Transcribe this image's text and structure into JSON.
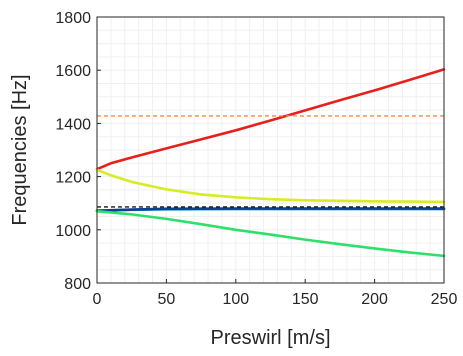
{
  "chart_data": {
    "type": "line",
    "title": "",
    "xlabel": "Preswirl [m/s]",
    "ylabel": "Frequencies [Hz]",
    "xlim": [
      0,
      250
    ],
    "ylim": [
      800,
      1800
    ],
    "xticks": [
      0,
      50,
      100,
      150,
      200,
      250
    ],
    "yticks": [
      800,
      1000,
      1200,
      1400,
      1600,
      1800
    ],
    "grid": true,
    "legend": "none",
    "series": [
      {
        "color": "#e8201c",
        "style": "solid",
        "x": [
          0,
          10,
          25,
          50,
          75,
          100,
          125,
          150,
          175,
          200,
          225,
          250
        ],
        "y": [
          1228,
          1250,
          1272,
          1306,
          1340,
          1374,
          1411,
          1449,
          1487,
          1524,
          1563,
          1603
        ]
      },
      {
        "color": "#d8ec26",
        "style": "solid",
        "x": [
          0,
          10,
          25,
          50,
          75,
          100,
          125,
          150,
          175,
          200,
          225,
          250
        ],
        "y": [
          1226,
          1205,
          1180,
          1152,
          1133,
          1122,
          1115,
          1111,
          1109,
          1107,
          1106,
          1105
        ]
      },
      {
        "color": "#1f9bd8",
        "style": "solid",
        "x": [
          0,
          25,
          50,
          100,
          150,
          200,
          250
        ],
        "y": [
          1072,
          1075,
          1077,
          1078,
          1078,
          1078,
          1078
        ]
      },
      {
        "color": "#0e3f8a",
        "style": "solid",
        "x": [
          0,
          25,
          50,
          100,
          150,
          200,
          250
        ],
        "y": [
          1072,
          1076,
          1079,
          1080,
          1080,
          1080,
          1080
        ]
      },
      {
        "color": "#2ee06a",
        "style": "solid",
        "x": [
          0,
          25,
          50,
          75,
          100,
          125,
          150,
          175,
          200,
          225,
          250
        ],
        "y": [
          1070,
          1058,
          1041,
          1021,
          1000,
          982,
          963,
          946,
          930,
          915,
          902
        ]
      },
      {
        "color": "#ff8a3d",
        "style": "dashed",
        "x": [
          0,
          250
        ],
        "y": [
          1428,
          1428
        ]
      },
      {
        "color": "#1a1a1a",
        "style": "dashed",
        "x": [
          0,
          250
        ],
        "y": [
          1086,
          1086
        ]
      }
    ]
  }
}
